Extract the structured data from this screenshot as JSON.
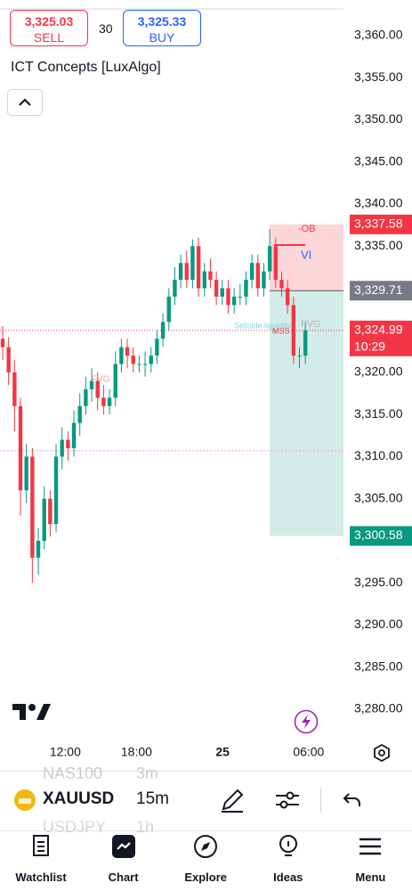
{
  "header": {
    "sell_price": "3,325.03",
    "sell_label": "SELL",
    "quantity": "30",
    "buy_price": "3,325.33",
    "buy_label": "BUY",
    "indicator": "ICT Concepts [LuxAlgo]"
  },
  "chart_data": {
    "type": "candlestick",
    "open": [
      3324,
      3323,
      3320,
      3316,
      3306,
      3310,
      3298,
      3300,
      3305,
      3302,
      3310,
      3312,
      3311,
      3314,
      3316,
      3318,
      3319,
      3317,
      3316,
      3317,
      3321,
      3323,
      3322,
      3321,
      3321,
      3321,
      3322,
      3324,
      3326,
      3329,
      3331,
      3333,
      3331,
      3335,
      3330,
      3332,
      3331,
      3329,
      3330,
      3328,
      3329,
      3329,
      3331,
      3333,
      3330,
      3332,
      3335,
      3331,
      3330,
      3328,
      3322,
      3322
    ],
    "high": [
      3325.5,
      3324.2,
      3321.5,
      3317,
      3311.5,
      3311,
      3301.5,
      3306.5,
      3306,
      3311.5,
      3313.5,
      3313,
      3315.5,
      3317.5,
      3319.5,
      3320.5,
      3320,
      3318.5,
      3318,
      3322.5,
      3324,
      3324,
      3323,
      3322,
      3322.5,
      3323,
      3325,
      3327,
      3330,
      3332.5,
      3334,
      3334.5,
      3335.8,
      3336,
      3333,
      3333.5,
      3332,
      3331,
      3331,
      3330,
      3330.5,
      3332,
      3334,
      3334,
      3333,
      3337,
      3336,
      3332,
      3331,
      3329,
      3323,
      3326
    ],
    "low": [
      3321.5,
      3318.5,
      3313,
      3303,
      3304.5,
      3295,
      3296,
      3299,
      3300.5,
      3301,
      3308.5,
      3309.5,
      3310,
      3312.5,
      3315,
      3316.5,
      3315.5,
      3315,
      3315,
      3316,
      3320,
      3320.5,
      3320,
      3320,
      3319.5,
      3320,
      3321,
      3323,
      3325,
      3328,
      3330,
      3330,
      3330,
      3329,
      3329,
      3330,
      3328,
      3328,
      3327,
      3327,
      3328,
      3328,
      3330,
      3329,
      3329,
      3331,
      3330,
      3329,
      3327,
      3321,
      3320.5,
      3321
    ],
    "close": [
      3323,
      3320,
      3316,
      3306,
      3310,
      3298,
      3300,
      3305,
      3302,
      3310,
      3312,
      3311,
      3314,
      3316,
      3318,
      3319,
      3317,
      3316,
      3317,
      3321,
      3323,
      3322,
      3321,
      3321,
      3321,
      3322,
      3324,
      3326,
      3329,
      3331,
      3333,
      3331,
      3335,
      3330,
      3332,
      3331,
      3329,
      3330,
      3328,
      3329,
      3329,
      3331,
      3333,
      3330,
      3332,
      3335,
      3331,
      3330,
      3328,
      3322,
      3322,
      3325
    ],
    "up_color": "#089981",
    "down_color": "#f23645",
    "ylim": [
      3280,
      3360
    ],
    "yticks": [
      {
        "value": 3280,
        "label": "3,280.00"
      },
      {
        "value": 3285,
        "label": "3,285.00"
      },
      {
        "value": 3290,
        "label": "3,290.00"
      },
      {
        "value": 3295,
        "label": "3,295.00"
      },
      {
        "value": 3300,
        "label": "3,300.00"
      },
      {
        "value": 3305,
        "label": "3,305.00"
      },
      {
        "value": 3310,
        "label": "3,310.00"
      },
      {
        "value": 3315,
        "label": "3,315.00"
      },
      {
        "value": 3320,
        "label": "3,320.00"
      },
      {
        "value": 3325,
        "label": "3,325.00"
      },
      {
        "value": 3330,
        "label": "3,330.00"
      },
      {
        "value": 3335,
        "label": "3,335.00"
      },
      {
        "value": 3340,
        "label": "3,340.00"
      },
      {
        "value": 3345,
        "label": "3,345.00"
      },
      {
        "value": 3350,
        "label": "3,350.00"
      },
      {
        "value": 3355,
        "label": "3,355.00"
      },
      {
        "value": 3360,
        "label": "3,360.00"
      }
    ],
    "xticks": [
      {
        "value": 11,
        "label": "12:00"
      },
      {
        "value": 23,
        "label": "18:00"
      },
      {
        "value": 37.5,
        "label": "25"
      },
      {
        "value": 52,
        "label": "06:00"
      }
    ],
    "price_labels": [
      {
        "value": 3337.58,
        "label": "3,337.58",
        "color": "#f23645"
      },
      {
        "value": 3329.71,
        "label": "3,329.71",
        "color": "#787b86"
      },
      {
        "value": 3324.99,
        "label": "3,324.99",
        "color": "#f23645"
      },
      {
        "value": 3300.58,
        "label": "3,300.58",
        "color": "#089981"
      }
    ],
    "countdown": "10:29",
    "dotted_levels": [
      3310.7
    ],
    "annotations": [
      "-OB",
      "VI",
      "FVG",
      "MSS",
      "Sellside liquidity",
      "FVG"
    ]
  },
  "toolbar": {
    "symbol": "XAUUSD",
    "interval": "15m",
    "prev_symbol": "NAS100",
    "prev_interval": "3m",
    "next_symbol": "USDJPY",
    "next_interval": "1h"
  },
  "nav": [
    "Watchlist",
    "Chart",
    "Explore",
    "Ideas",
    "Menu"
  ]
}
